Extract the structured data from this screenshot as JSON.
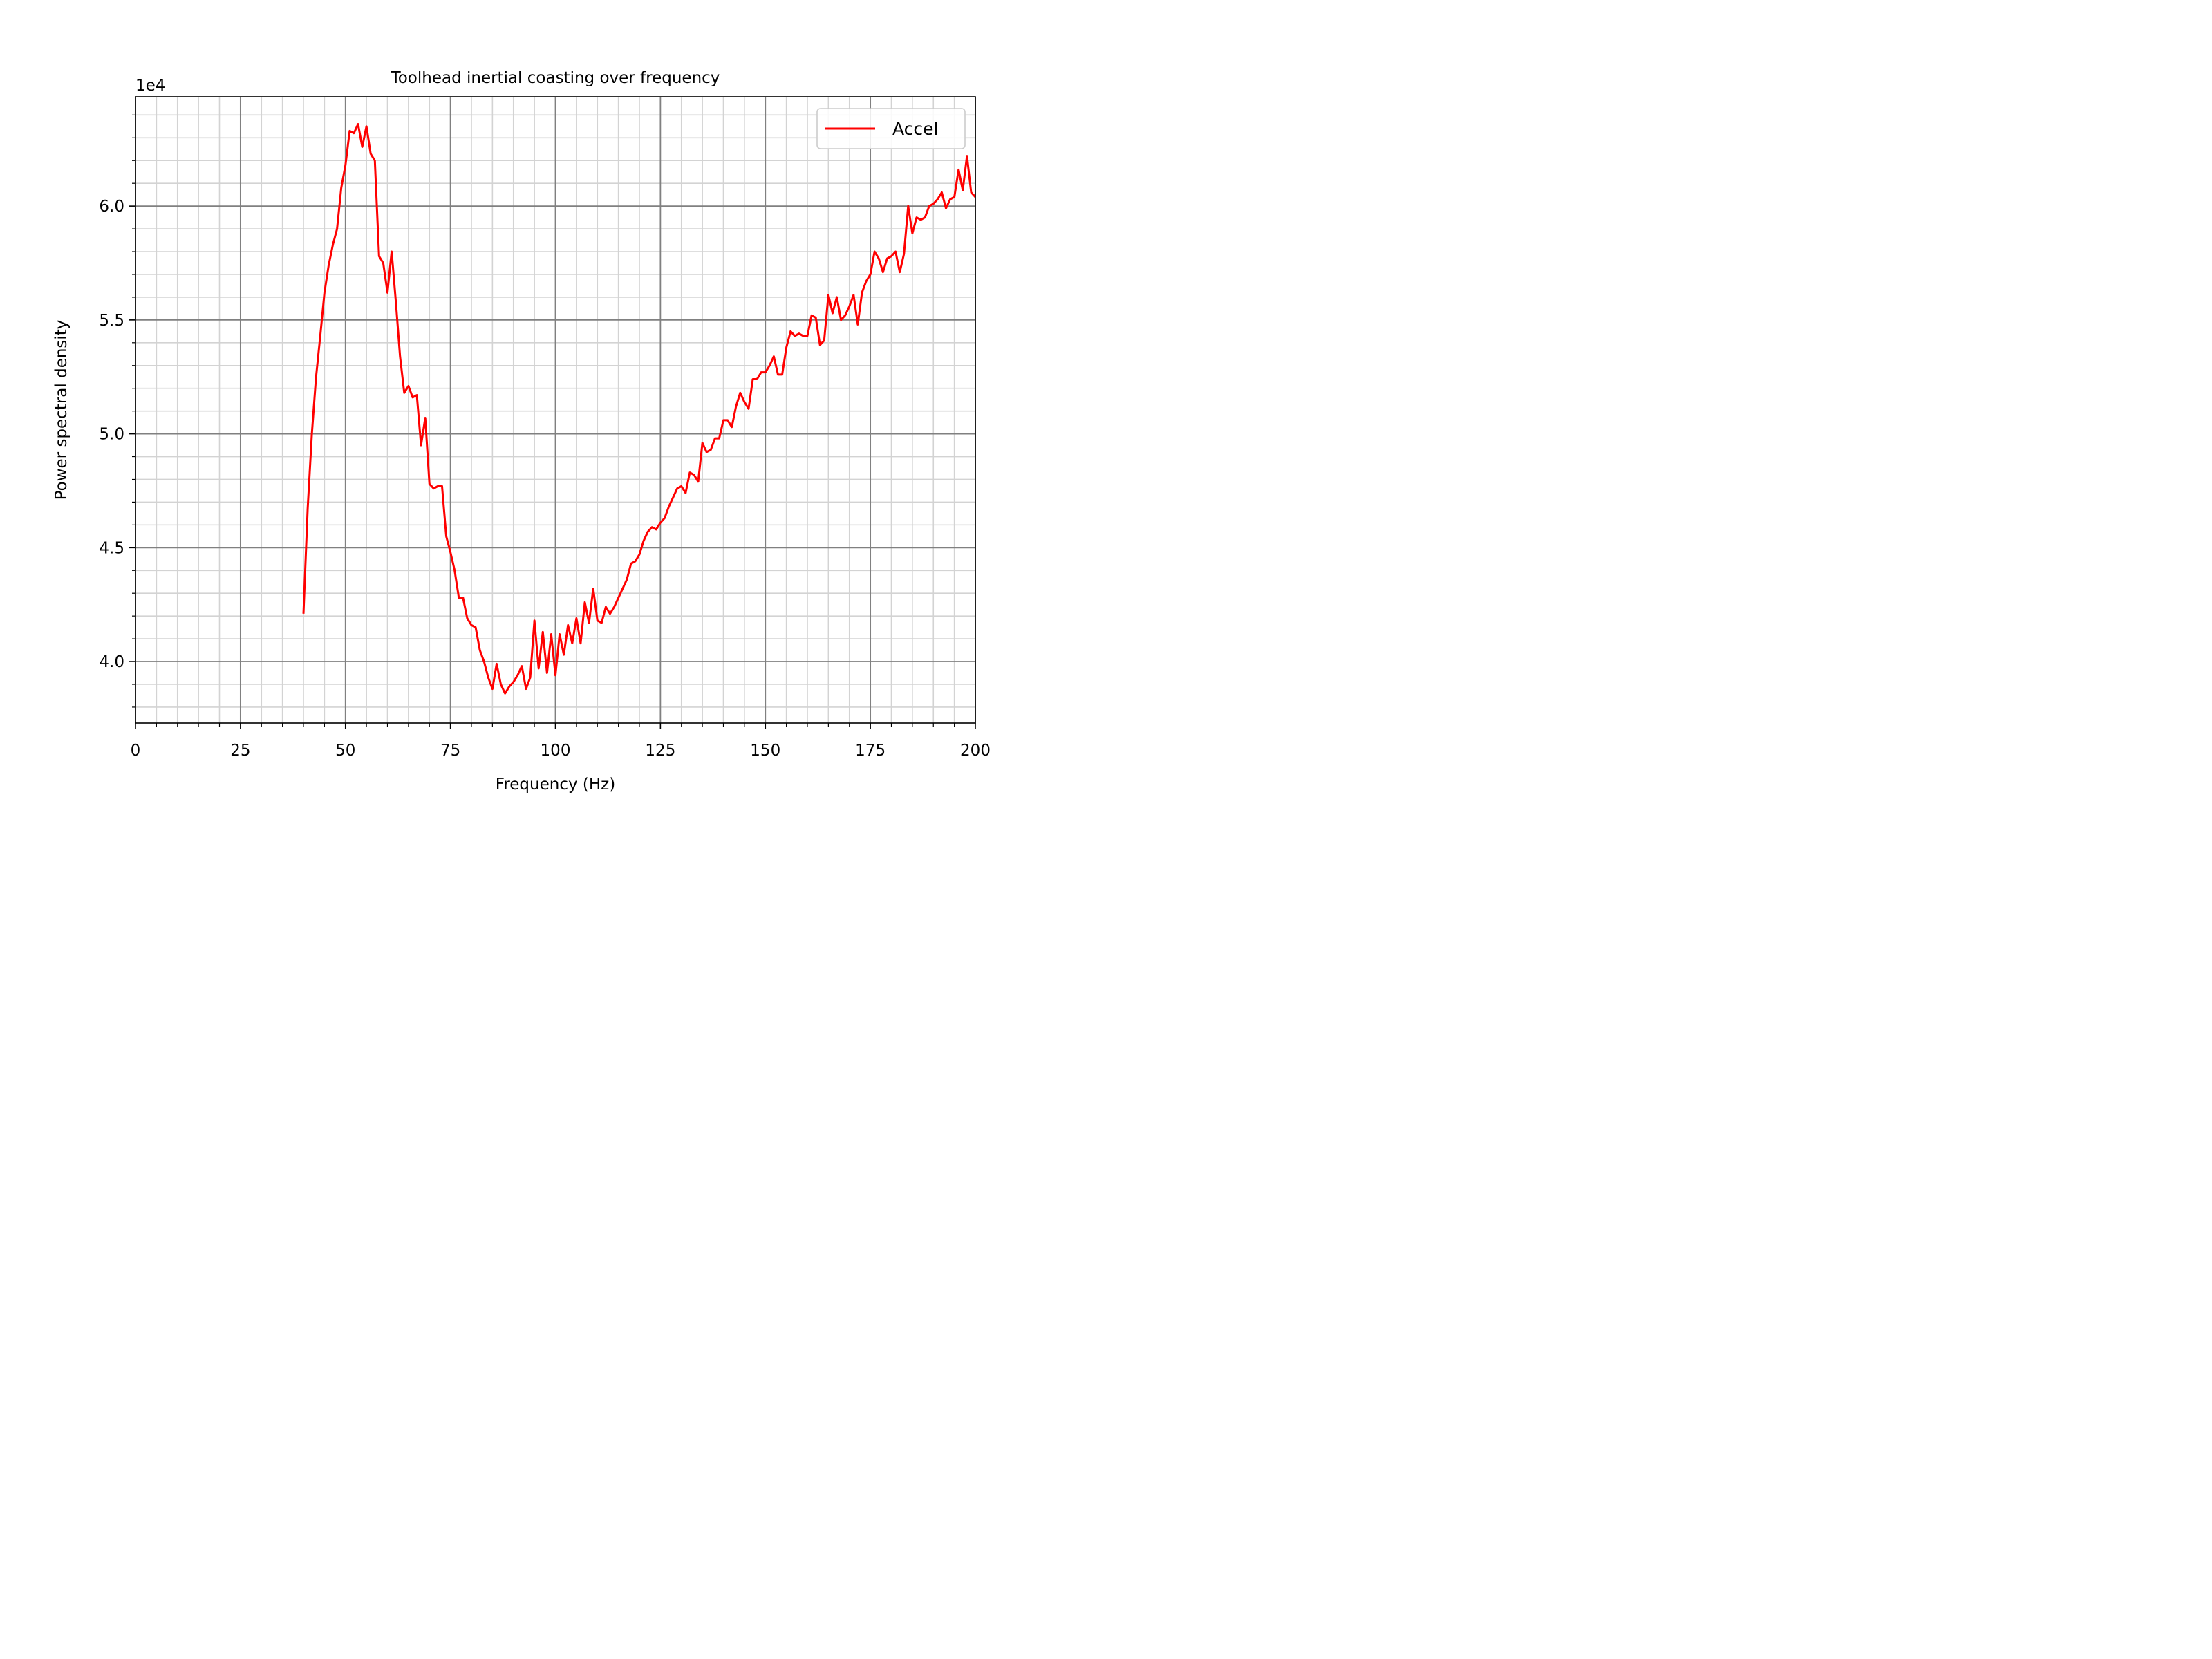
{
  "chart_data": {
    "type": "line",
    "title": "Toolhead inertial coasting over frequency",
    "xlabel": "Frequency (Hz)",
    "ylabel": "Power spectral density",
    "y_offset_label": "1e4",
    "xlim": [
      0,
      200
    ],
    "ylim": [
      37300,
      64800
    ],
    "x_ticks": [
      0,
      25,
      50,
      75,
      100,
      125,
      150,
      175,
      200
    ],
    "x_tick_labels": [
      "0",
      "25",
      "50",
      "75",
      "100",
      "125",
      "150",
      "175",
      "200"
    ],
    "y_ticks": [
      40000,
      45000,
      50000,
      55000,
      60000
    ],
    "y_tick_labels": [
      "4.0",
      "4.5",
      "5.0",
      "5.5",
      "6.0"
    ],
    "grid": true,
    "minor_grid": true,
    "legend_position": "top-right",
    "series": [
      {
        "name": "Accel",
        "color": "#ff0000",
        "x": [
          40,
          41,
          42,
          43,
          44,
          45,
          46,
          47,
          48,
          49,
          50,
          51,
          52,
          53,
          54,
          55,
          56,
          57,
          58,
          59,
          60,
          61,
          62,
          63,
          64,
          65,
          66,
          67,
          68,
          69,
          70,
          71,
          72,
          73,
          74,
          75,
          76,
          77,
          78,
          79,
          80,
          81,
          82,
          83,
          84,
          85,
          86,
          87,
          88,
          89,
          90,
          91,
          92,
          93,
          94,
          95,
          96,
          97,
          98,
          99,
          100,
          101,
          102,
          103,
          104,
          105,
          106,
          107,
          108,
          109,
          110,
          111,
          112,
          113,
          114,
          115,
          116,
          117,
          118,
          119,
          120,
          121,
          122,
          123,
          124,
          125,
          126,
          127,
          128,
          129,
          130,
          131,
          132,
          133,
          134,
          135,
          136,
          137,
          138,
          139,
          140,
          141,
          142,
          143,
          144,
          145,
          146,
          147,
          148,
          149,
          150,
          151,
          152,
          153,
          154,
          155,
          156,
          157,
          158,
          159,
          160,
          161,
          162,
          163,
          164,
          165,
          166,
          167,
          168,
          169,
          170,
          171,
          172,
          173,
          174,
          175,
          176,
          177,
          178,
          179,
          180,
          181,
          182,
          183,
          184,
          185,
          186,
          187,
          188,
          189,
          190,
          191,
          192,
          193,
          194,
          195,
          196,
          197,
          198,
          199,
          200
        ],
        "y": [
          42100,
          46700,
          50000,
          52500,
          54300,
          56200,
          57400,
          58300,
          59000,
          60800,
          61800,
          63300,
          63200,
          63600,
          62600,
          63500,
          62300,
          62000,
          57800,
          57500,
          56200,
          58000,
          55800,
          53400,
          51800,
          52100,
          51600,
          51700,
          49500,
          50700,
          47800,
          47600,
          47700,
          47700,
          45500,
          44800,
          44000,
          42800,
          42800,
          41900,
          41600,
          41500,
          40500,
          40000,
          39300,
          38800,
          39900,
          39000,
          38600,
          38900,
          39100,
          39400,
          39800,
          38800,
          39300,
          41800,
          39700,
          41300,
          39500,
          41200,
          39400,
          41200,
          40300,
          41600,
          40800,
          41900,
          40800,
          42600,
          41700,
          43200,
          41800,
          41700,
          42400,
          42100,
          42400,
          42800,
          43200,
          43600,
          44300,
          44400,
          44700,
          45300,
          45700,
          45900,
          45800,
          46100,
          46300,
          46800,
          47200,
          47600,
          47700,
          47400,
          48300,
          48200,
          47900,
          49600,
          49200,
          49300,
          49800,
          49800,
          50600,
          50600,
          50300,
          51200,
          51800,
          51400,
          51100,
          52400,
          52400,
          52700,
          52700,
          53000,
          53400,
          52600,
          52600,
          53800,
          54500,
          54300,
          54400,
          54300,
          54300,
          55200,
          55100,
          53900,
          54100,
          56100,
          55300,
          56000,
          55000,
          55200,
          55600,
          56100,
          54800,
          56200,
          56700,
          57000,
          58000,
          57700,
          57100,
          57700,
          57800,
          58000,
          57100,
          57900,
          60000,
          58800,
          59500,
          59400,
          59500,
          60000,
          60100,
          60300,
          60600,
          59900,
          60300,
          60400,
          61600,
          60700,
          62200,
          60600,
          60400
        ]
      }
    ]
  }
}
